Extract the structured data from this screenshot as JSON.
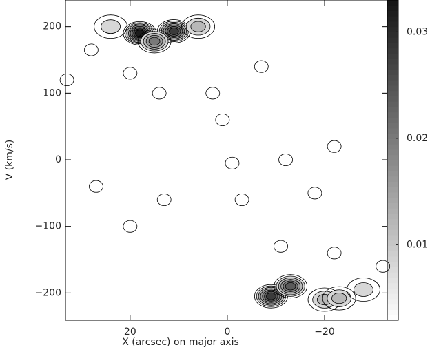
{
  "chart_data": {
    "type": "contour",
    "xlabel": "X (arcsec) on major axis",
    "ylabel": "V (km/s)",
    "xlim": [
      33.3,
      -32.9
    ],
    "ylim": [
      -241,
      240
    ],
    "xticks": [
      20,
      0,
      {
        "value": -20,
        "label": "−20"
      }
    ],
    "yticks": [
      {
        "value": -200,
        "label": "−200"
      },
      {
        "value": -100,
        "label": "−100"
      },
      0,
      100,
      200
    ],
    "clim": [
      0.0029,
      0.033
    ],
    "cticks": [
      0.01,
      0.02,
      0.03
    ],
    "peaks": {
      "x": [
        18,
        11,
        15,
        6,
        24,
        28,
        -9,
        -13,
        -20,
        -23,
        -28,
        33,
        20,
        14,
        -1,
        -3,
        -12,
        -22,
        27,
        13,
        1,
        -22,
        20,
        -18,
        -11,
        -7,
        -32,
        3
      ],
      "y": [
        190,
        193,
        178,
        200,
        200,
        165,
        -205,
        -190,
        -210,
        -208,
        -195,
        120,
        130,
        100,
        -5,
        -60,
        0,
        20,
        -40,
        -60,
        60,
        -140,
        -100,
        -50,
        -130,
        140,
        -160,
        100
      ],
      "values": [
        0.033,
        0.03,
        0.02,
        0.012,
        0.008,
        0.006,
        0.03,
        0.025,
        0.015,
        0.015,
        0.008,
        0.006,
        0.005,
        0.004,
        0.005,
        0.005,
        0.004,
        0.005,
        0.004,
        0.004,
        0.004,
        0.005,
        0.004,
        0.004,
        0.004,
        0.004,
        0.004,
        0.004
      ]
    }
  }
}
